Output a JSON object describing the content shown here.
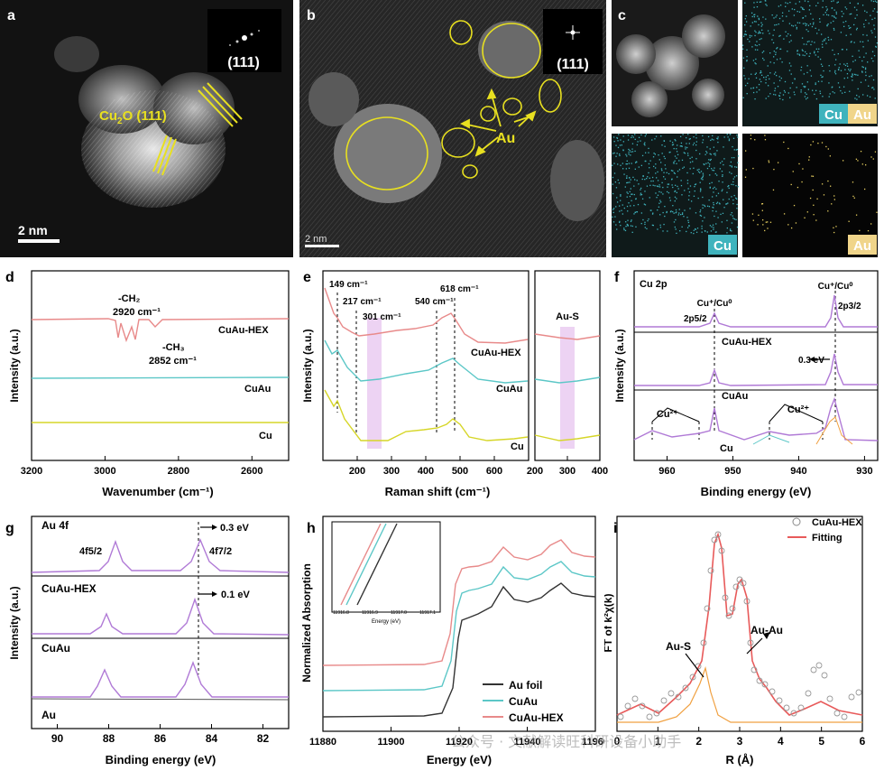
{
  "panel_labels": {
    "a": "a",
    "b": "b",
    "c": "c",
    "d": "d",
    "e": "e",
    "f": "f",
    "g": "g",
    "h": "h",
    "i": "i"
  },
  "tem": {
    "a": {
      "inset": "(111)",
      "annotation": "Cu2O (111)",
      "annotation_main": "Cu",
      "annotation_sub": "2",
      "annotation_rest": "O (111)",
      "scale": "2 nm"
    },
    "b": {
      "inset": "(111)",
      "annotation": "Au",
      "scale": "2 nm"
    },
    "c": {
      "labels": {
        "cu_top": "Cu",
        "au_top": "Au",
        "cu": "Cu",
        "au": "Au"
      }
    }
  },
  "colors": {
    "cuau_hex": "#e88a8a",
    "cuau": "#5cc7c7",
    "cu": "#d6d628",
    "au_foil": "#333333",
    "purple": "#b07ad6",
    "highlight": "#e8c8f0"
  },
  "chart_data": [
    {
      "panel": "d",
      "type": "line",
      "xlabel": "Wavenumber (cm⁻¹)",
      "ylabel": "Intensity (a.u.)",
      "xlim": [
        3200,
        2500
      ],
      "xticks": [
        3200,
        3000,
        2800,
        2600
      ],
      "series": [
        {
          "name": "CuAu-HEX"
        },
        {
          "name": "CuAu"
        },
        {
          "name": "Cu"
        }
      ],
      "annotations": [
        "-CH₂",
        "2920 cm⁻¹",
        "-CH₃",
        "2852 cm⁻¹"
      ],
      "peaks": [
        2920,
        2852
      ]
    },
    {
      "panel": "e",
      "type": "line",
      "xlabel": "Raman shift (cm⁻¹)",
      "ylabel": "Intensity (a.u.)",
      "xlim": [
        100,
        700
      ],
      "xticks": [
        200,
        300,
        400,
        500,
        600
      ],
      "xlim_right": [
        200,
        400
      ],
      "xticks_right": [
        200,
        300,
        400
      ],
      "series": [
        {
          "name": "CuAu-HEX"
        },
        {
          "name": "CuAu"
        },
        {
          "name": "Cu"
        }
      ],
      "peaks": [
        149,
        217,
        301,
        540,
        618
      ],
      "annotations": [
        "149 cm⁻¹",
        "217 cm⁻¹",
        "301 cm⁻¹",
        "540 cm⁻¹",
        "618 cm⁻¹",
        "Au-S"
      ]
    },
    {
      "panel": "f",
      "type": "line",
      "title": "Cu 2p",
      "xlabel": "Binding energy (eV)",
      "ylabel": "Intensity (a.u.)",
      "xlim": [
        965,
        928
      ],
      "xticks": [
        960,
        950,
        940,
        930
      ],
      "series": [
        {
          "name": "CuAu-HEX"
        },
        {
          "name": "CuAu"
        },
        {
          "name": "Cu"
        }
      ],
      "peaks": [
        952.3,
        932.5
      ],
      "annotations": [
        "Cu⁺/Cu⁰",
        "Cu⁺/Cu⁰",
        "2p5/2",
        "2p3/2",
        "0.3 eV",
        "Cu²⁺",
        "Cu²⁺"
      ]
    },
    {
      "panel": "g",
      "type": "line",
      "title": "Au 4f",
      "xlabel": "Binding energy (eV)",
      "ylabel": "Intensity (a.u.)",
      "xlim": [
        91,
        81
      ],
      "xticks": [
        90,
        88,
        86,
        84,
        82
      ],
      "series": [
        {
          "name": "CuAu-HEX"
        },
        {
          "name": "CuAu"
        },
        {
          "name": "Au"
        }
      ],
      "peaks": [
        87.8,
        84.1
      ],
      "annotations": [
        "4f5/2",
        "4f7/2",
        "0.3 eV",
        "0.1 eV"
      ]
    },
    {
      "panel": "h",
      "type": "line",
      "xlabel": "Energy (eV)",
      "ylabel": "Normalized Absorption",
      "xlim": [
        11880,
        11960
      ],
      "xticks": [
        11880,
        11900,
        11920,
        11940,
        11960
      ],
      "series": [
        {
          "name": "Au foil"
        },
        {
          "name": "CuAu"
        },
        {
          "name": "CuAu-HEX"
        }
      ],
      "inset": {
        "xlabel": "Energy (eV)",
        "xticks": [
          "11916.8",
          "11916.9",
          "11917.0",
          "11917.1"
        ]
      }
    },
    {
      "panel": "i",
      "type": "line",
      "xlabel": "R (Å)",
      "ylabel": "FT of k²χ(k)",
      "xlim": [
        0,
        6
      ],
      "xticks": [
        0,
        1,
        2,
        3,
        4,
        5,
        6
      ],
      "series": [
        {
          "name": "CuAu-HEX"
        },
        {
          "name": "Fitting"
        }
      ],
      "annotations": [
        "Au-S",
        "Au-Au"
      ]
    }
  ],
  "watermark": "公众号 · 文献解读旺科研设备小助手"
}
